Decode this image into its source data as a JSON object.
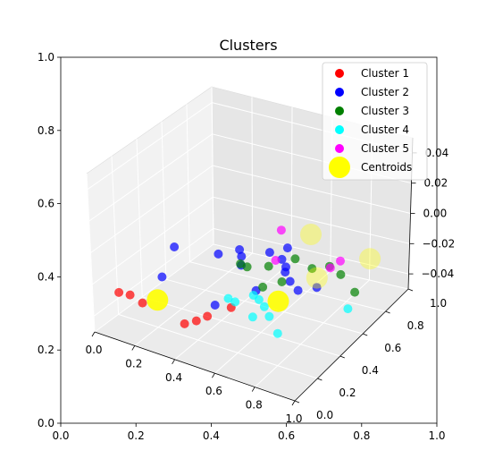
{
  "chart_data": {
    "type": "scatter",
    "title": "Clusters",
    "outer_axes": {
      "xlim": [
        0.0,
        1.0
      ],
      "ylim": [
        0.0,
        1.0
      ],
      "xticks": [
        "0.0",
        "0.2",
        "0.4",
        "0.6",
        "0.8",
        "1.0"
      ],
      "yticks": [
        "0.0",
        "0.2",
        "0.4",
        "0.6",
        "0.8",
        "1.0"
      ]
    },
    "axes3d": {
      "xlim": [
        0.0,
        1.0
      ],
      "ylim": [
        0.0,
        1.0
      ],
      "zlim": [
        -0.05,
        0.05
      ],
      "xticks": [
        "0.0",
        "0.2",
        "0.4",
        "0.6",
        "0.8",
        "1.0"
      ],
      "yticks": [
        "0.0",
        "0.2",
        "0.4",
        "0.6",
        "0.8",
        "1.0"
      ],
      "zticks": [
        "−0.04",
        "−0.02",
        "0.00",
        "0.02",
        "0.04"
      ],
      "grid": true
    },
    "legend": {
      "placement": "top-right"
    },
    "series": [
      {
        "name": "Cluster 1",
        "color": "#ff0000",
        "points": [
          {
            "x": 0.05,
            "y": 0.12
          },
          {
            "x": 0.1,
            "y": 0.13
          },
          {
            "x": 0.18,
            "y": 0.1
          },
          {
            "x": 0.47,
            "y": 0.16
          },
          {
            "x": 0.45,
            "y": 0.1
          },
          {
            "x": 0.42,
            "y": 0.05
          },
          {
            "x": 0.52,
            "y": 0.28
          }
        ]
      },
      {
        "name": "Cluster 2",
        "color": "#0000ff",
        "points": [
          {
            "x": 0.03,
            "y": 0.62
          },
          {
            "x": 0.13,
            "y": 0.35
          },
          {
            "x": 0.23,
            "y": 0.66
          },
          {
            "x": 0.29,
            "y": 0.74
          },
          {
            "x": 0.33,
            "y": 0.69
          },
          {
            "x": 0.37,
            "y": 0.62
          },
          {
            "x": 0.42,
            "y": 0.78
          },
          {
            "x": 0.47,
            "y": 0.85
          },
          {
            "x": 0.5,
            "y": 0.75
          },
          {
            "x": 0.55,
            "y": 0.7
          },
          {
            "x": 0.57,
            "y": 0.66
          },
          {
            "x": 0.63,
            "y": 0.6
          },
          {
            "x": 0.7,
            "y": 0.55
          },
          {
            "x": 0.76,
            "y": 0.61
          },
          {
            "x": 0.54,
            "y": 0.46
          },
          {
            "x": 0.45,
            "y": 0.26
          }
        ]
      },
      {
        "name": "Cluster 3",
        "color": "#008000",
        "points": [
          {
            "x": 0.36,
            "y": 0.63
          },
          {
            "x": 0.4,
            "y": 0.62
          },
          {
            "x": 0.48,
            "y": 0.67
          },
          {
            "x": 0.55,
            "y": 0.78
          },
          {
            "x": 0.66,
            "y": 0.74
          },
          {
            "x": 0.72,
            "y": 0.79
          },
          {
            "x": 0.8,
            "y": 0.75
          },
          {
            "x": 0.93,
            "y": 0.65
          },
          {
            "x": 0.55,
            "y": 0.5
          },
          {
            "x": 0.6,
            "y": 0.58
          }
        ]
      },
      {
        "name": "Cluster 4",
        "color": "#00ffff",
        "points": [
          {
            "x": 0.47,
            "y": 0.34
          },
          {
            "x": 0.51,
            "y": 0.33
          },
          {
            "x": 0.55,
            "y": 0.42
          },
          {
            "x": 0.59,
            "y": 0.4
          },
          {
            "x": 0.64,
            "y": 0.36
          },
          {
            "x": 0.64,
            "y": 0.26
          },
          {
            "x": 0.7,
            "y": 0.3
          },
          {
            "x": 0.8,
            "y": 0.2
          },
          {
            "x": 0.97,
            "y": 0.52
          }
        ]
      },
      {
        "name": "Cluster 5",
        "color": "#ff00ff",
        "points": [
          {
            "x": 0.36,
            "y": 0.98
          },
          {
            "x": 0.48,
            "y": 0.73
          },
          {
            "x": 0.74,
            "y": 0.85
          },
          {
            "x": 0.73,
            "y": 0.78
          }
        ]
      },
      {
        "name": "Centroids",
        "color": "#ffff00",
        "points": [
          {
            "x": 0.22,
            "y": 0.16
          },
          {
            "x": 0.5,
            "y": 1.0
          },
          {
            "x": 0.67,
            "y": 0.43
          },
          {
            "x": 0.72,
            "y": 0.68
          },
          {
            "x": 0.85,
            "y": 0.92
          }
        ]
      }
    ]
  }
}
